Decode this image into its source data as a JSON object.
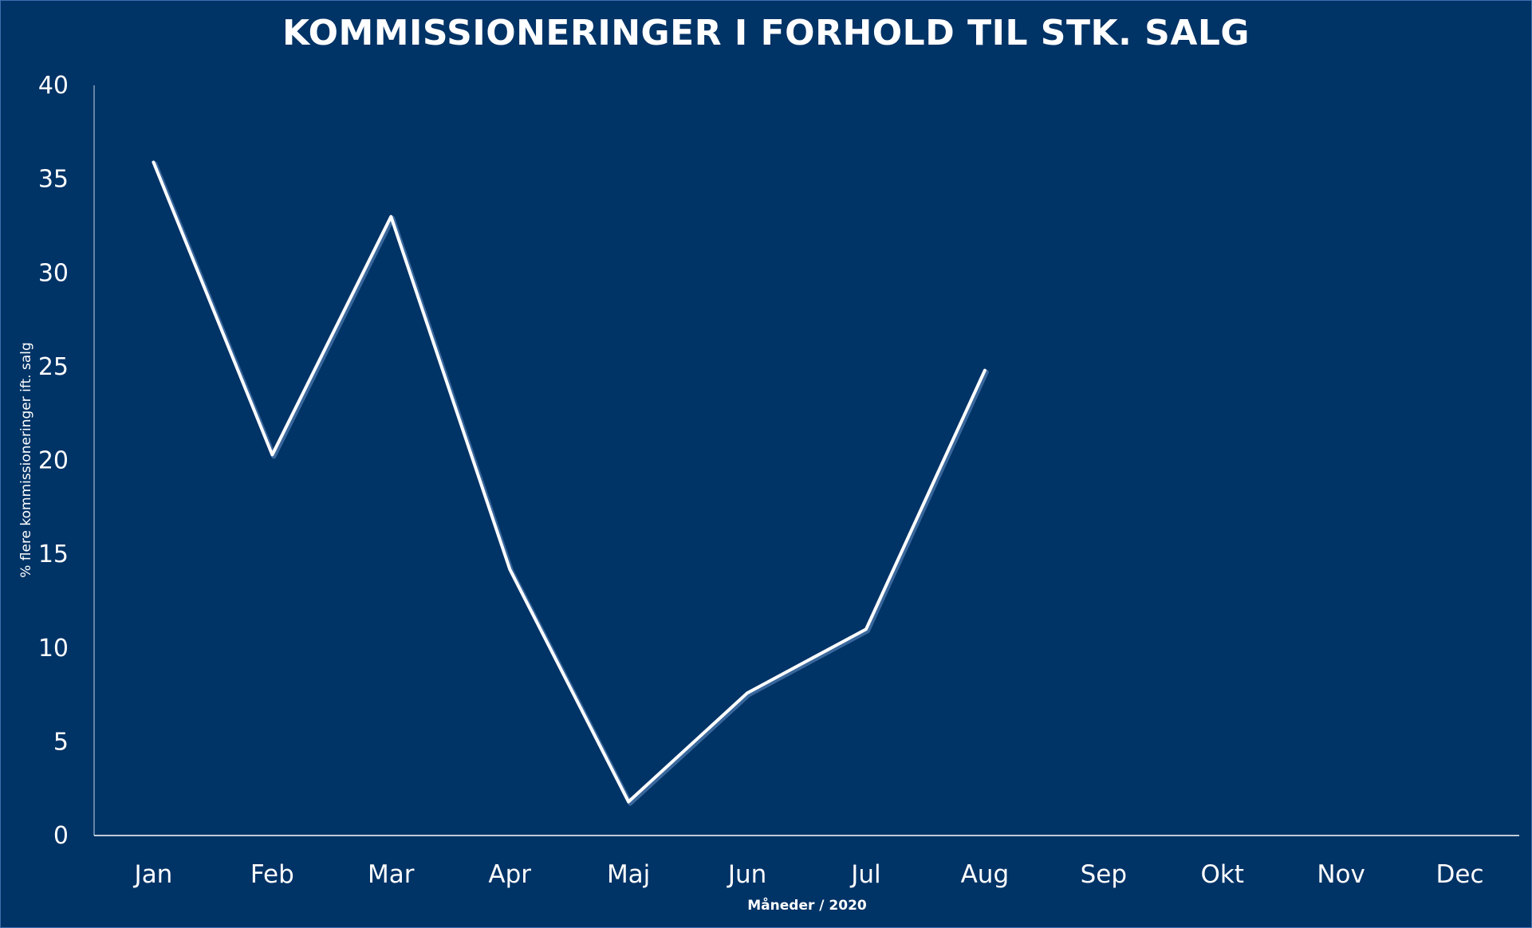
{
  "chart_data": {
    "type": "line",
    "title": "KOMMISSIONERINGER I FORHOLD TIL STK. SALG",
    "xlabel": "Måneder / 2020",
    "ylabel": "% flere kommissioneringer ift. salg",
    "categories": [
      "Jan",
      "Feb",
      "Mar",
      "Apr",
      "Maj",
      "Jun",
      "Jul",
      "Aug",
      "Sep",
      "Okt",
      "Nov",
      "Dec"
    ],
    "series": [
      {
        "values": [
          35.9,
          20.3,
          33.0,
          14.2,
          1.8,
          7.6,
          11.0,
          24.8,
          null,
          null,
          null,
          null
        ]
      }
    ],
    "ylim": [
      0,
      40
    ],
    "yticks": [
      0,
      5,
      10,
      15,
      20,
      25,
      30,
      35,
      40
    ],
    "grid": false,
    "drop_lines": true,
    "colors": {
      "background": "#003366",
      "line": "#ffffff",
      "axis": "#ffffff"
    }
  }
}
